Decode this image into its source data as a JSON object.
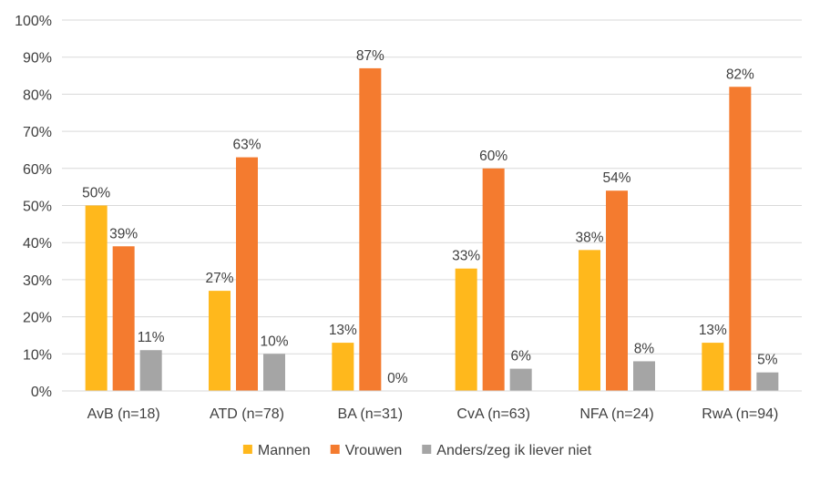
{
  "chart_data": {
    "type": "bar",
    "title": "",
    "xlabel": "",
    "ylabel": "",
    "ylim": [
      0,
      100
    ],
    "ytick_step": 10,
    "ytick_suffix": "%",
    "grid": true,
    "legend_position": "bottom",
    "categories": [
      "AvB (n=18)",
      "ATD (n=78)",
      "BA (n=31)",
      "CvA (n=63)",
      "NFA (n=24)",
      "RwA (n=94)"
    ],
    "series": [
      {
        "name": "Mannen",
        "color": "#FFB81C",
        "values": [
          50,
          27,
          13,
          33,
          38,
          13
        ]
      },
      {
        "name": "Vrouwen",
        "color": "#F47B2F",
        "values": [
          39,
          63,
          87,
          60,
          54,
          82
        ]
      },
      {
        "name": "Anders/zeg ik liever niet",
        "color": "#A5A5A5",
        "values": [
          11,
          10,
          0,
          6,
          8,
          5
        ]
      }
    ]
  }
}
